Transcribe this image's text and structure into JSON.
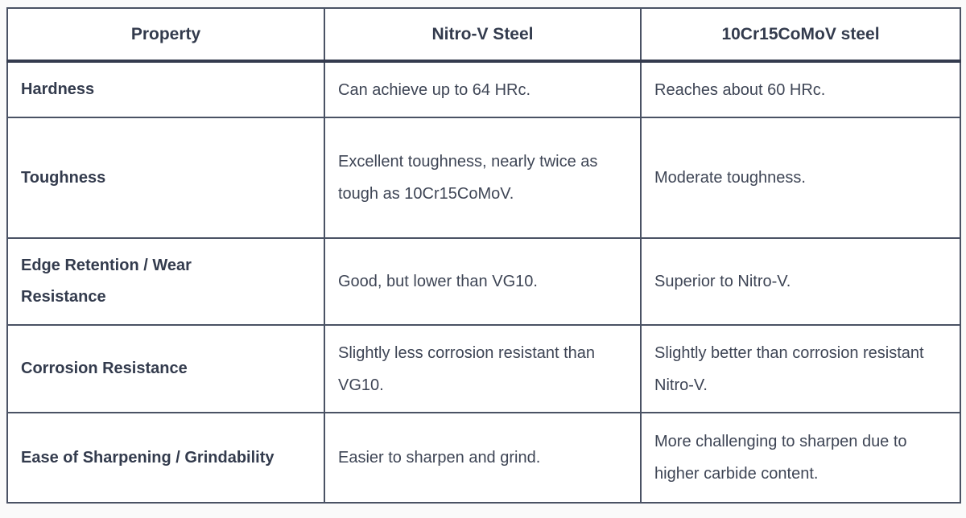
{
  "chart_data": {
    "type": "table",
    "columns": [
      "Property",
      "Nitro-V Steel",
      "10Cr15CoMoV steel"
    ],
    "rows": [
      [
        "Hardness",
        "Can achieve up to 64 HRc.",
        "Reaches about 60 HRc."
      ],
      [
        "Toughness",
        "Excellent toughness, nearly twice as tough as 10Cr15CoMoV.",
        "Moderate toughness."
      ],
      [
        "Edge Retention / Wear Resistance",
        "Good, but lower than VG10.",
        "Superior to Nitro-V."
      ],
      [
        "Corrosion Resistance",
        "Slightly less corrosion resistant than VG10.",
        "Slightly better than corrosion resistant Nitro-V."
      ],
      [
        "Ease of Sharpening / Grindability",
        "Easier to sharpen and grind.",
        "More challenging to sharpen due to higher carbide content."
      ]
    ],
    "layout": {
      "header_alignment": "center",
      "property_column_style": "bold-left-aligned",
      "grid": "full"
    }
  },
  "colors": {
    "page_background": "#fafafa",
    "cell_background": "#ffffff",
    "grid_border": "#4a5264",
    "header_underline": "#343b4e",
    "heading_text": "#333b4d",
    "body_text": "#3e4555"
  }
}
